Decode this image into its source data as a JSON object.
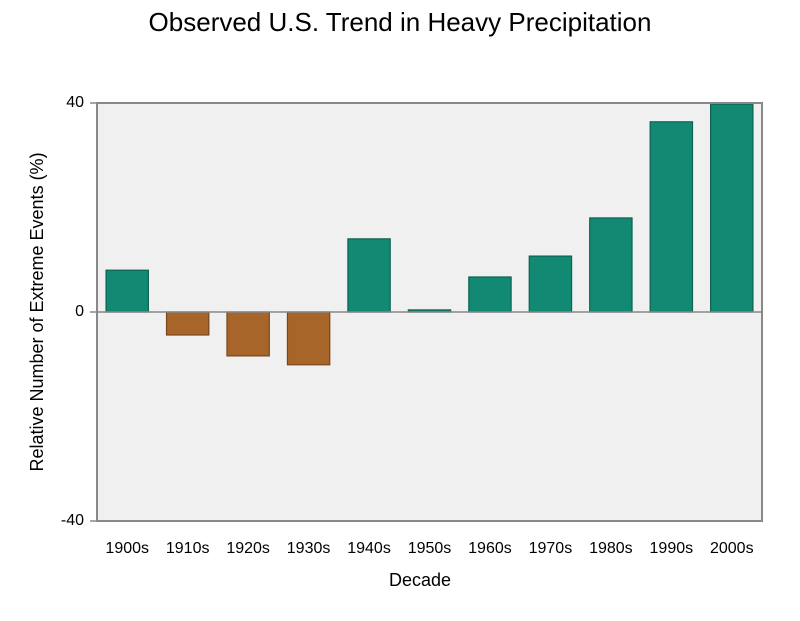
{
  "chart_data": {
    "type": "bar",
    "title": "Observed U.S. Trend in Heavy Precipitation",
    "x_label": "Decade",
    "y_label": "Relative Number of Extreme Events (%)",
    "categories": [
      "1900s",
      "1910s",
      "1920s",
      "1930s",
      "1940s",
      "1950s",
      "1960s",
      "1970s",
      "1980s",
      "1990s",
      "2000s"
    ],
    "values": [
      8,
      -4.4,
      -8.4,
      -10.1,
      14,
      0.4,
      6.7,
      10.7,
      18,
      36.4,
      39.8
    ],
    "positive_color": "#128a73",
    "negative_color": "#a8652a",
    "ylim": [
      -40,
      40
    ],
    "yticks": [
      -40,
      0,
      40
    ],
    "grid": false
  }
}
